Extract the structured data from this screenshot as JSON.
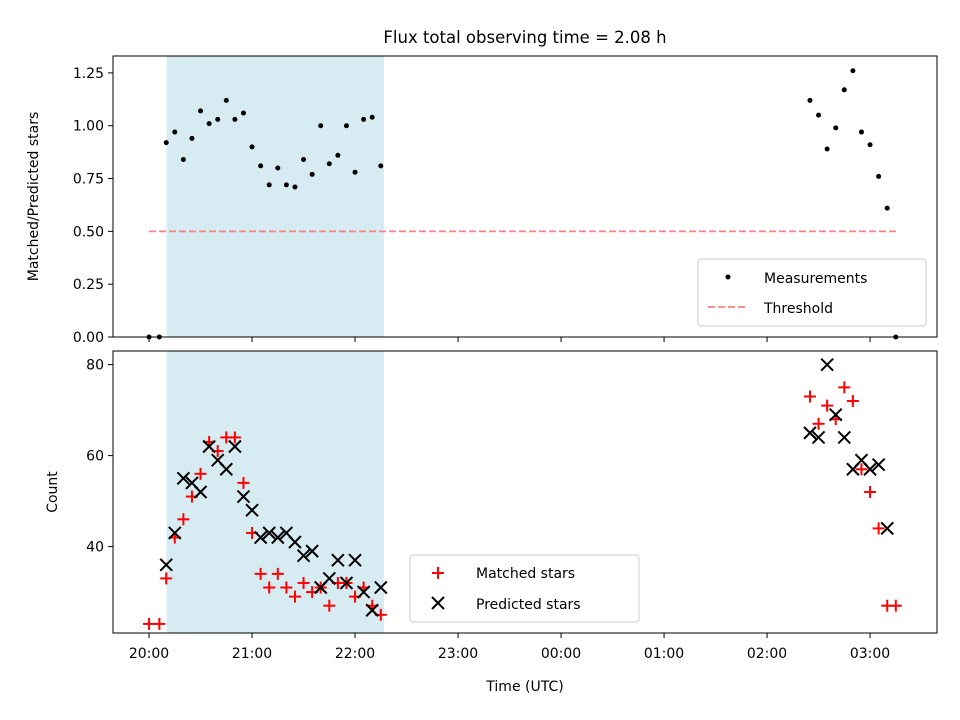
{
  "chart_data": {
    "title": "Flux total observing time = 2.08 h",
    "xlabel": "Time (UTC)",
    "x_tick_labels": [
      "20:00",
      "21:00",
      "22:00",
      "23:00",
      "00:00",
      "01:00",
      "02:00",
      "03:00"
    ],
    "x_ticks_hours": [
      20,
      21,
      22,
      23,
      24,
      25,
      26,
      27
    ],
    "xlim_hours": [
      19.65,
      27.65
    ],
    "shaded_interval_hours": [
      20.17,
      22.28
    ],
    "shade_color": "#add8e6",
    "panels": [
      {
        "type": "scatter",
        "ylabel": "Matched/Predicted stars",
        "ylim": [
          0,
          1.33
        ],
        "y_ticks": [
          0,
          0.25,
          0.5,
          0.75,
          1.0,
          1.25
        ],
        "y_tick_labels": [
          "0.00",
          "0.25",
          "0.50",
          "0.75",
          "1.00",
          "1.25"
        ],
        "legend_position": "lower-right",
        "threshold": {
          "name": "Threshold",
          "value": 0.5,
          "x_range_hours": [
            20.0,
            27.27
          ],
          "color": "#ff8080",
          "style": "dashed"
        },
        "series": [
          {
            "name": "Measurements",
            "color": "#000000",
            "marker": "dot",
            "points": [
              [
                "20:00",
                0.0
              ],
              [
                "20:06",
                0.0
              ],
              [
                "20:10",
                0.92
              ],
              [
                "20:15",
                0.97
              ],
              [
                "20:20",
                0.84
              ],
              [
                "20:25",
                0.94
              ],
              [
                "20:30",
                1.07
              ],
              [
                "20:35",
                1.01
              ],
              [
                "20:40",
                1.03
              ],
              [
                "20:45",
                1.12
              ],
              [
                "20:50",
                1.03
              ],
              [
                "20:55",
                1.06
              ],
              [
                "21:00",
                0.9
              ],
              [
                "21:05",
                0.81
              ],
              [
                "21:10",
                0.72
              ],
              [
                "21:15",
                0.8
              ],
              [
                "21:20",
                0.72
              ],
              [
                "21:25",
                0.71
              ],
              [
                "21:30",
                0.84
              ],
              [
                "21:35",
                0.77
              ],
              [
                "21:40",
                1.0
              ],
              [
                "21:45",
                0.82
              ],
              [
                "21:50",
                0.86
              ],
              [
                "21:55",
                1.0
              ],
              [
                "22:00",
                0.78
              ],
              [
                "22:05",
                1.03
              ],
              [
                "22:10",
                1.04
              ],
              [
                "22:15",
                0.81
              ],
              [
                "02:25",
                1.12
              ],
              [
                "02:30",
                1.05
              ],
              [
                "02:35",
                0.89
              ],
              [
                "02:40",
                0.99
              ],
              [
                "02:45",
                1.17
              ],
              [
                "02:50",
                1.26
              ],
              [
                "02:55",
                0.97
              ],
              [
                "03:00",
                0.91
              ],
              [
                "03:05",
                0.76
              ],
              [
                "03:10",
                0.61
              ],
              [
                "03:15",
                0.0
              ]
            ]
          }
        ]
      },
      {
        "type": "scatter",
        "ylabel": "Count",
        "ylim": [
          21,
          83
        ],
        "y_ticks": [
          40,
          60,
          80
        ],
        "y_tick_labels": [
          "40",
          "60",
          "80"
        ],
        "legend_position": "lower-center",
        "series": [
          {
            "name": "Matched stars",
            "color": "#ff0000",
            "marker": "plus",
            "points": [
              [
                "20:00",
                23
              ],
              [
                "20:06",
                23
              ],
              [
                "20:10",
                33
              ],
              [
                "20:15",
                42
              ],
              [
                "20:20",
                46
              ],
              [
                "20:25",
                51
              ],
              [
                "20:30",
                56
              ],
              [
                "20:35",
                63
              ],
              [
                "20:40",
                61
              ],
              [
                "20:45",
                64
              ],
              [
                "20:50",
                64
              ],
              [
                "20:55",
                54
              ],
              [
                "21:00",
                43
              ],
              [
                "21:05",
                34
              ],
              [
                "21:10",
                31
              ],
              [
                "21:15",
                34
              ],
              [
                "21:20",
                31
              ],
              [
                "21:25",
                29
              ],
              [
                "21:30",
                32
              ],
              [
                "21:35",
                30
              ],
              [
                "21:40",
                31
              ],
              [
                "21:45",
                27
              ],
              [
                "21:50",
                32
              ],
              [
                "21:55",
                32
              ],
              [
                "22:00",
                29
              ],
              [
                "22:05",
                31
              ],
              [
                "22:10",
                27
              ],
              [
                "22:15",
                25
              ],
              [
                "02:25",
                73
              ],
              [
                "02:30",
                67
              ],
              [
                "02:35",
                71
              ],
              [
                "02:40",
                68
              ],
              [
                "02:45",
                75
              ],
              [
                "02:50",
                72
              ],
              [
                "02:55",
                57
              ],
              [
                "03:00",
                52
              ],
              [
                "03:05",
                44
              ],
              [
                "03:10",
                27
              ],
              [
                "03:15",
                27
              ]
            ]
          },
          {
            "name": "Predicted stars",
            "color": "#000000",
            "marker": "x",
            "points": [
              [
                "20:10",
                36
              ],
              [
                "20:15",
                43
              ],
              [
                "20:20",
                55
              ],
              [
                "20:25",
                54
              ],
              [
                "20:30",
                52
              ],
              [
                "20:35",
                62
              ],
              [
                "20:40",
                59
              ],
              [
                "20:45",
                57
              ],
              [
                "20:50",
                62
              ],
              [
                "20:55",
                51
              ],
              [
                "21:00",
                48
              ],
              [
                "21:05",
                42
              ],
              [
                "21:10",
                43
              ],
              [
                "21:15",
                42
              ],
              [
                "21:20",
                43
              ],
              [
                "21:25",
                41
              ],
              [
                "21:30",
                38
              ],
              [
                "21:35",
                39
              ],
              [
                "21:40",
                31
              ],
              [
                "21:45",
                33
              ],
              [
                "21:50",
                37
              ],
              [
                "21:55",
                32
              ],
              [
                "22:00",
                37
              ],
              [
                "22:05",
                30
              ],
              [
                "22:10",
                26
              ],
              [
                "22:15",
                31
              ],
              [
                "02:25",
                65
              ],
              [
                "02:30",
                64
              ],
              [
                "02:35",
                80
              ],
              [
                "02:40",
                69
              ],
              [
                "02:45",
                64
              ],
              [
                "02:50",
                57
              ],
              [
                "02:55",
                59
              ],
              [
                "03:00",
                57
              ],
              [
                "03:05",
                58
              ],
              [
                "03:10",
                44
              ]
            ]
          }
        ]
      }
    ]
  }
}
